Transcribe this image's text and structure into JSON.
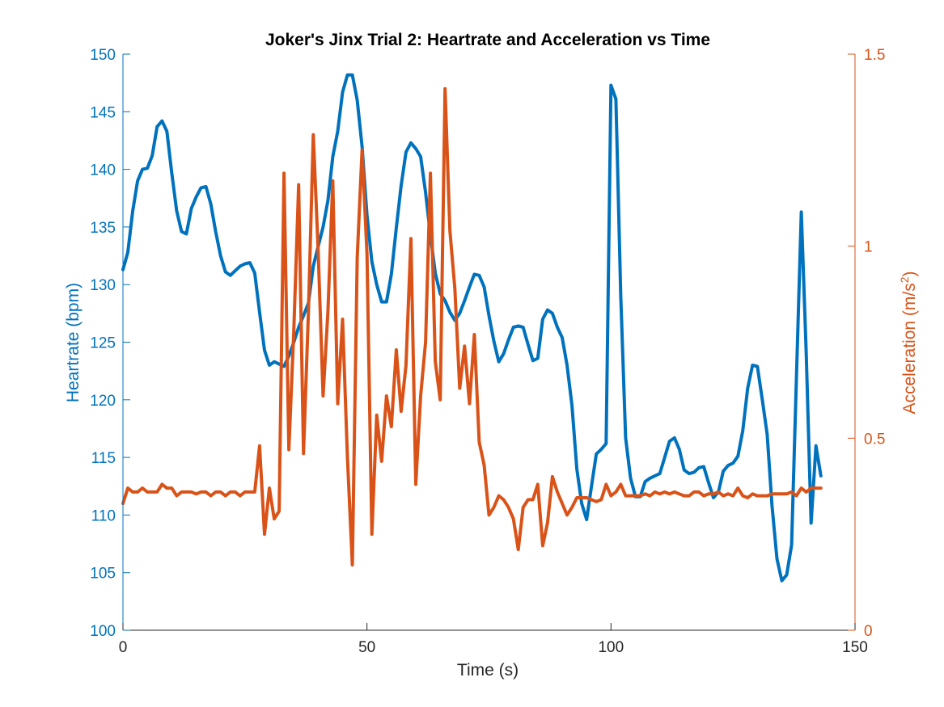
{
  "chart_data": {
    "type": "line",
    "title": "Joker's Jinx Trial 2: Heartrate and Acceleration vs Time",
    "xlabel": "Time (s)",
    "ylabel_left": "Heartrate (bpm)",
    "ylabel_right": "Acceleration (m/s",
    "ylabel_right_sup": "2",
    "ylabel_right_close": ")",
    "xlim": [
      0,
      150
    ],
    "ylim_left": [
      100,
      150
    ],
    "ylim_right": [
      0,
      1.5
    ],
    "x_ticks": [
      "0",
      "50",
      "100",
      "150"
    ],
    "y_ticks_left": [
      "100",
      "105",
      "110",
      "115",
      "120",
      "125",
      "130",
      "135",
      "140",
      "145",
      "150"
    ],
    "y_ticks_right": [
      "0",
      "0.5",
      "1",
      "1.5"
    ],
    "grid": false,
    "colors": {
      "heartrate": "#0072BD",
      "acceleration": "#D95319",
      "axis": "#262626"
    },
    "series": [
      {
        "axis": "left",
        "points": [
          [
            0,
            131.3
          ],
          [
            1,
            132.8
          ],
          [
            2,
            136.4
          ],
          [
            3,
            139.0
          ],
          [
            4,
            140.0
          ],
          [
            5,
            140.1
          ],
          [
            6,
            141.2
          ],
          [
            7,
            143.7
          ],
          [
            8,
            144.2
          ],
          [
            9,
            143.3
          ],
          [
            10,
            139.7
          ],
          [
            11,
            136.4
          ],
          [
            12,
            134.6
          ],
          [
            13,
            134.4
          ],
          [
            14,
            136.6
          ],
          [
            15,
            137.6
          ],
          [
            16,
            138.4
          ],
          [
            17,
            138.5
          ],
          [
            18,
            137.0
          ],
          [
            19,
            134.6
          ],
          [
            20,
            132.5
          ],
          [
            21,
            131.1
          ],
          [
            22,
            130.8
          ],
          [
            23,
            131.2
          ],
          [
            24,
            131.6
          ],
          [
            25,
            131.8
          ],
          [
            26,
            131.9
          ],
          [
            27,
            131.0
          ],
          [
            28,
            127.6
          ],
          [
            29,
            124.3
          ],
          [
            30,
            123.0
          ],
          [
            31,
            123.3
          ],
          [
            32,
            123.1
          ],
          [
            33,
            122.9
          ],
          [
            34,
            123.8
          ],
          [
            35,
            125.0
          ],
          [
            36,
            126.3
          ],
          [
            37,
            127.3
          ],
          [
            38,
            128.4
          ],
          [
            39,
            131.6
          ],
          [
            40,
            133.3
          ],
          [
            41,
            135.0
          ],
          [
            42,
            137.3
          ],
          [
            43,
            141.1
          ],
          [
            44,
            143.3
          ],
          [
            45,
            146.7
          ],
          [
            46,
            148.2
          ],
          [
            47,
            148.2
          ],
          [
            48,
            146.0
          ],
          [
            49,
            142.0
          ],
          [
            50,
            136.0
          ],
          [
            51,
            132.0
          ],
          [
            52,
            130.0
          ],
          [
            53,
            128.5
          ],
          [
            54,
            128.5
          ],
          [
            55,
            130.9
          ],
          [
            56,
            134.9
          ],
          [
            57,
            138.6
          ],
          [
            58,
            141.5
          ],
          [
            59,
            142.3
          ],
          [
            60,
            141.8
          ],
          [
            61,
            141.1
          ],
          [
            62,
            138.0
          ],
          [
            63,
            134.3
          ],
          [
            64,
            131.0
          ],
          [
            65,
            129.2
          ],
          [
            66,
            128.6
          ],
          [
            67,
            127.6
          ],
          [
            68,
            126.9
          ],
          [
            69,
            127.5
          ],
          [
            70,
            128.6
          ],
          [
            71,
            129.8
          ],
          [
            72,
            130.9
          ],
          [
            73,
            130.8
          ],
          [
            74,
            129.8
          ],
          [
            75,
            127.3
          ],
          [
            76,
            125.1
          ],
          [
            77,
            123.3
          ],
          [
            78,
            124.0
          ],
          [
            79,
            125.2
          ],
          [
            80,
            126.3
          ],
          [
            81,
            126.4
          ],
          [
            82,
            126.3
          ],
          [
            83,
            124.8
          ],
          [
            84,
            123.4
          ],
          [
            85,
            123.6
          ],
          [
            86,
            127.0
          ],
          [
            87,
            127.8
          ],
          [
            88,
            127.5
          ],
          [
            89,
            126.3
          ],
          [
            90,
            125.4
          ],
          [
            91,
            123.0
          ],
          [
            92,
            119.5
          ],
          [
            93,
            114.0
          ],
          [
            94,
            111.0
          ],
          [
            95,
            109.6
          ],
          [
            96,
            112.5
          ],
          [
            97,
            115.3
          ],
          [
            98,
            115.7
          ],
          [
            99,
            116.2
          ],
          [
            100,
            147.3
          ],
          [
            101,
            146.1
          ],
          [
            102,
            129.0
          ],
          [
            103,
            116.7
          ],
          [
            104,
            113.2
          ],
          [
            105,
            111.6
          ],
          [
            106,
            111.6
          ],
          [
            107,
            112.9
          ],
          [
            108,
            113.2
          ],
          [
            109,
            113.4
          ],
          [
            110,
            113.6
          ],
          [
            111,
            115.0
          ],
          [
            112,
            116.4
          ],
          [
            113,
            116.7
          ],
          [
            114,
            115.7
          ],
          [
            115,
            113.9
          ],
          [
            116,
            113.6
          ],
          [
            117,
            113.7
          ],
          [
            118,
            114.1
          ],
          [
            119,
            114.2
          ],
          [
            120,
            112.8
          ],
          [
            121,
            111.5
          ],
          [
            122,
            112.0
          ],
          [
            123,
            113.8
          ],
          [
            124,
            114.3
          ],
          [
            125,
            114.5
          ],
          [
            126,
            115.1
          ],
          [
            127,
            117.3
          ],
          [
            128,
            121.0
          ],
          [
            129,
            123.0
          ],
          [
            130,
            122.9
          ],
          [
            131,
            120.0
          ],
          [
            132,
            117.0
          ],
          [
            133,
            110.8
          ],
          [
            134,
            106.2
          ],
          [
            135,
            104.3
          ],
          [
            136,
            104.8
          ],
          [
            137,
            107.4
          ],
          [
            138,
            122.0
          ],
          [
            139,
            136.3
          ],
          [
            140,
            124.0
          ],
          [
            141,
            109.3
          ],
          [
            142,
            116.0
          ],
          [
            143,
            113.4
          ]
        ]
      },
      {
        "axis": "right",
        "points": [
          [
            0,
            0.33
          ],
          [
            1,
            0.37
          ],
          [
            2,
            0.36
          ],
          [
            3,
            0.36
          ],
          [
            4,
            0.37
          ],
          [
            5,
            0.36
          ],
          [
            6,
            0.36
          ],
          [
            7,
            0.36
          ],
          [
            8,
            0.38
          ],
          [
            9,
            0.37
          ],
          [
            10,
            0.37
          ],
          [
            11,
            0.35
          ],
          [
            12,
            0.36
          ],
          [
            13,
            0.36
          ],
          [
            14,
            0.36
          ],
          [
            15,
            0.355
          ],
          [
            16,
            0.36
          ],
          [
            17,
            0.36
          ],
          [
            18,
            0.35
          ],
          [
            19,
            0.36
          ],
          [
            20,
            0.36
          ],
          [
            21,
            0.35
          ],
          [
            22,
            0.36
          ],
          [
            23,
            0.36
          ],
          [
            24,
            0.35
          ],
          [
            25,
            0.36
          ],
          [
            26,
            0.36
          ],
          [
            27,
            0.36
          ],
          [
            28,
            0.48
          ],
          [
            29,
            0.25
          ],
          [
            30,
            0.37
          ],
          [
            31,
            0.29
          ],
          [
            32,
            0.31
          ],
          [
            33,
            1.19
          ],
          [
            34,
            0.47
          ],
          [
            35,
            0.78
          ],
          [
            36,
            1.16
          ],
          [
            37,
            0.46
          ],
          [
            38,
            0.83
          ],
          [
            39,
            1.29
          ],
          [
            40,
            0.99
          ],
          [
            41,
            0.61
          ],
          [
            42,
            0.83
          ],
          [
            43,
            1.17
          ],
          [
            44,
            0.59
          ],
          [
            45,
            0.81
          ],
          [
            46,
            0.45
          ],
          [
            47,
            0.17
          ],
          [
            48,
            0.97
          ],
          [
            49,
            1.25
          ],
          [
            50,
            0.98
          ],
          [
            51,
            0.25
          ],
          [
            52,
            0.56
          ],
          [
            53,
            0.44
          ],
          [
            54,
            0.61
          ],
          [
            55,
            0.53
          ],
          [
            56,
            0.73
          ],
          [
            57,
            0.57
          ],
          [
            58,
            0.69
          ],
          [
            59,
            1.02
          ],
          [
            60,
            0.38
          ],
          [
            61,
            0.61
          ],
          [
            62,
            0.75
          ],
          [
            63,
            1.19
          ],
          [
            64,
            0.7
          ],
          [
            65,
            0.6
          ],
          [
            66,
            1.41
          ],
          [
            67,
            1.04
          ],
          [
            68,
            0.89
          ],
          [
            69,
            0.63
          ],
          [
            70,
            0.74
          ],
          [
            71,
            0.59
          ],
          [
            72,
            0.77
          ],
          [
            73,
            0.49
          ],
          [
            74,
            0.43
          ],
          [
            75,
            0.3
          ],
          [
            76,
            0.32
          ],
          [
            77,
            0.35
          ],
          [
            78,
            0.34
          ],
          [
            79,
            0.32
          ],
          [
            80,
            0.29
          ],
          [
            81,
            0.21
          ],
          [
            82,
            0.32
          ],
          [
            83,
            0.34
          ],
          [
            84,
            0.34
          ],
          [
            85,
            0.38
          ],
          [
            86,
            0.22
          ],
          [
            87,
            0.28
          ],
          [
            88,
            0.4
          ],
          [
            89,
            0.36
          ],
          [
            90,
            0.33
          ],
          [
            91,
            0.3
          ],
          [
            92,
            0.32
          ],
          [
            93,
            0.345
          ],
          [
            94,
            0.345
          ],
          [
            95,
            0.345
          ],
          [
            96,
            0.34
          ],
          [
            97,
            0.335
          ],
          [
            98,
            0.34
          ],
          [
            99,
            0.38
          ],
          [
            100,
            0.35
          ],
          [
            101,
            0.36
          ],
          [
            102,
            0.38
          ],
          [
            103,
            0.35
          ],
          [
            104,
            0.35
          ],
          [
            105,
            0.35
          ],
          [
            106,
            0.35
          ],
          [
            107,
            0.355
          ],
          [
            108,
            0.35
          ],
          [
            109,
            0.36
          ],
          [
            110,
            0.355
          ],
          [
            111,
            0.36
          ],
          [
            112,
            0.355
          ],
          [
            113,
            0.36
          ],
          [
            114,
            0.355
          ],
          [
            115,
            0.35
          ],
          [
            116,
            0.35
          ],
          [
            117,
            0.36
          ],
          [
            118,
            0.36
          ],
          [
            119,
            0.35
          ],
          [
            120,
            0.355
          ],
          [
            121,
            0.355
          ],
          [
            122,
            0.36
          ],
          [
            123,
            0.35
          ],
          [
            124,
            0.355
          ],
          [
            125,
            0.35
          ],
          [
            126,
            0.37
          ],
          [
            127,
            0.35
          ],
          [
            128,
            0.345
          ],
          [
            129,
            0.355
          ],
          [
            130,
            0.35
          ],
          [
            131,
            0.35
          ],
          [
            132,
            0.35
          ],
          [
            133,
            0.355
          ],
          [
            134,
            0.355
          ],
          [
            135,
            0.355
          ],
          [
            136,
            0.355
          ],
          [
            137,
            0.36
          ],
          [
            138,
            0.35
          ],
          [
            139,
            0.37
          ],
          [
            140,
            0.36
          ],
          [
            141,
            0.37
          ],
          [
            142,
            0.37
          ],
          [
            143,
            0.37
          ]
        ]
      }
    ]
  }
}
